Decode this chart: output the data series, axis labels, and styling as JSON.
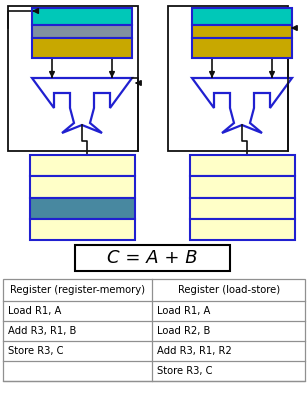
{
  "bg_color": "#ffffff",
  "table": {
    "col1_header": "Register (register-memory)",
    "col2_header": "Register (load-store)",
    "col1_rows": [
      "Load R1, A",
      "Add R3, R1, B",
      "Store R3, C",
      ""
    ],
    "col2_rows": [
      "Load R1, A",
      "Load R2, B",
      "Add R3, R1, R2",
      "Store R3, C"
    ]
  },
  "formula": "C = A + B",
  "colors": {
    "cyan": "#00c8b8",
    "gray_blue": "#8090a0",
    "yellow": "#c8a800",
    "light_yellow": "#ffffc8",
    "teal": "#4888a0",
    "blue_outline": "#2020d0",
    "line_color": "#101010",
    "table_line": "#909090"
  }
}
